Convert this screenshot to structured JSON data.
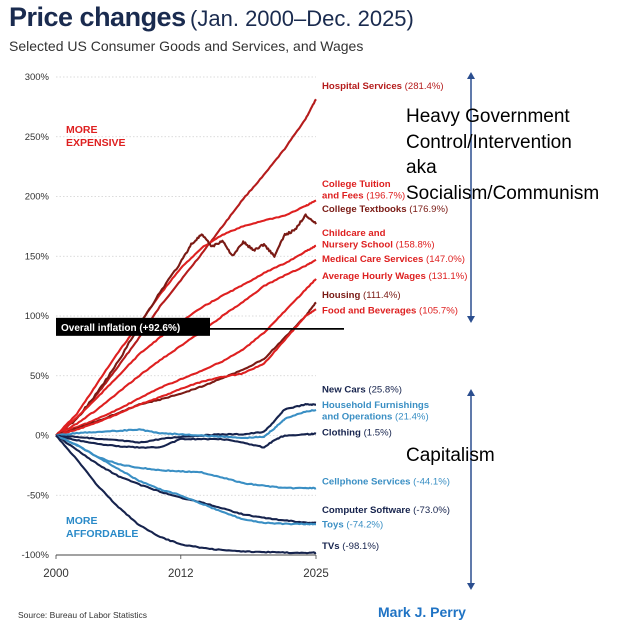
{
  "header": {
    "title": "Price changes",
    "title_suffix": "(Jan. 2000–Dec. 2025)",
    "subtitle": "Selected US Consumer Goods and Services, and Wages"
  },
  "footer": {
    "source": "Source:  Bureau of Labor Statistics",
    "author": "Mark J. Perry"
  },
  "annotations": {
    "gov_lines": [
      "Heavy Government",
      "Control/Intervention",
      "aka",
      "Socialism/Communism"
    ],
    "capitalism": "Capitalism"
  },
  "chart_data": {
    "type": "line",
    "title": "Price changes (Jan. 2000–Dec. 2025)",
    "xlim": [
      2000,
      2025
    ],
    "ylim": [
      -100,
      300
    ],
    "x_ticks": [
      2000,
      2012,
      2025
    ],
    "y_ticks": [
      -100,
      -50,
      0,
      50,
      100,
      150,
      200,
      250,
      300
    ],
    "y_tick_labels": [
      "-100%",
      "-50%",
      "0%",
      "50%",
      "100%",
      "150%",
      "200%",
      "250%",
      "300%"
    ],
    "region_labels": {
      "more_expensive": [
        "MORE",
        "EXPENSIVE"
      ],
      "more_affordable": [
        "MORE",
        "AFFORDABLE"
      ]
    },
    "overall_inflation": {
      "value": 92.6,
      "label": "Overall inflation (+92.6%)"
    },
    "series": [
      {
        "name": "Hospital Services",
        "label_lines": [
          "Hospital Services"
        ],
        "value_label": "(281.4%)",
        "color": "#b51c1c",
        "label_y_value": 290,
        "points": [
          [
            2000,
            0
          ],
          [
            2002,
            14
          ],
          [
            2004,
            35
          ],
          [
            2006,
            58
          ],
          [
            2008,
            82
          ],
          [
            2010,
            108
          ],
          [
            2012,
            130
          ],
          [
            2014,
            152
          ],
          [
            2016,
            175
          ],
          [
            2018,
            198
          ],
          [
            2020,
            218
          ],
          [
            2022,
            240
          ],
          [
            2024,
            265
          ],
          [
            2025,
            281.4
          ]
        ]
      },
      {
        "name": "College Tuition and Fees",
        "label_lines": [
          "College Tuition",
          "and Fees"
        ],
        "value_label": "(196.7%)",
        "color": "#de2020",
        "label_y_value": 208,
        "points": [
          [
            2000,
            0
          ],
          [
            2002,
            18
          ],
          [
            2004,
            44
          ],
          [
            2006,
            70
          ],
          [
            2008,
            93
          ],
          [
            2010,
            118
          ],
          [
            2012,
            140
          ],
          [
            2014,
            157
          ],
          [
            2016,
            168
          ],
          [
            2018,
            175
          ],
          [
            2020,
            180
          ],
          [
            2022,
            184
          ],
          [
            2024,
            192
          ],
          [
            2025,
            196.7
          ]
        ]
      },
      {
        "name": "College Textbooks",
        "label_lines": [
          "College Textbooks"
        ],
        "value_label": "(176.9%)",
        "color": "#7a1a14",
        "label_y_value": 187,
        "points": [
          [
            2000,
            0
          ],
          [
            2002,
            14
          ],
          [
            2004,
            36
          ],
          [
            2006,
            62
          ],
          [
            2008,
            92
          ],
          [
            2010,
            120
          ],
          [
            2012,
            145
          ],
          [
            2013,
            160
          ],
          [
            2014,
            168
          ],
          [
            2015,
            158
          ],
          [
            2016,
            163
          ],
          [
            2017,
            150
          ],
          [
            2018,
            162
          ],
          [
            2019,
            155
          ],
          [
            2020,
            160
          ],
          [
            2021,
            150
          ],
          [
            2022,
            168
          ],
          [
            2023,
            172
          ],
          [
            2024,
            185
          ],
          [
            2025,
            176.9
          ]
        ]
      },
      {
        "name": "Childcare and Nursery School",
        "label_lines": [
          "Childcare and",
          "Nursery School"
        ],
        "value_label": "(158.8%)",
        "color": "#de2020",
        "label_y_value": 167,
        "points": [
          [
            2000,
            0
          ],
          [
            2002,
            15
          ],
          [
            2004,
            32
          ],
          [
            2006,
            50
          ],
          [
            2008,
            68
          ],
          [
            2010,
            82
          ],
          [
            2012,
            95
          ],
          [
            2014,
            107
          ],
          [
            2016,
            117
          ],
          [
            2018,
            126
          ],
          [
            2020,
            136
          ],
          [
            2022,
            144
          ],
          [
            2024,
            154
          ],
          [
            2025,
            158.8
          ]
        ]
      },
      {
        "name": "Medical Care Services",
        "label_lines": [
          "Medical Care Services"
        ],
        "value_label": "(147.0%)",
        "color": "#de2020",
        "label_y_value": 145,
        "points": [
          [
            2000,
            0
          ],
          [
            2002,
            10
          ],
          [
            2004,
            22
          ],
          [
            2006,
            36
          ],
          [
            2008,
            50
          ],
          [
            2010,
            63
          ],
          [
            2012,
            75
          ],
          [
            2014,
            87
          ],
          [
            2016,
            100
          ],
          [
            2018,
            112
          ],
          [
            2020,
            125
          ],
          [
            2022,
            134
          ],
          [
            2024,
            142
          ],
          [
            2025,
            147
          ]
        ]
      },
      {
        "name": "Average Hourly Wages",
        "label_lines": [
          "Average Hourly Wages"
        ],
        "value_label": "(131.1%)",
        "color": "#de2020",
        "label_y_value": 131,
        "points": [
          [
            2000,
            0
          ],
          [
            2002,
            7
          ],
          [
            2004,
            14
          ],
          [
            2006,
            22
          ],
          [
            2008,
            31
          ],
          [
            2010,
            40
          ],
          [
            2012,
            47
          ],
          [
            2014,
            54
          ],
          [
            2016,
            62
          ],
          [
            2018,
            72
          ],
          [
            2020,
            86
          ],
          [
            2022,
            104
          ],
          [
            2024,
            122
          ],
          [
            2025,
            131.1
          ]
        ]
      },
      {
        "name": "Housing",
        "label_lines": [
          "Housing"
        ],
        "value_label": "(111.4%)",
        "color": "#7a1a14",
        "label_y_value": 115,
        "points": [
          [
            2000,
            0
          ],
          [
            2002,
            6
          ],
          [
            2004,
            12
          ],
          [
            2006,
            19
          ],
          [
            2008,
            26
          ],
          [
            2010,
            30
          ],
          [
            2012,
            35
          ],
          [
            2014,
            41
          ],
          [
            2016,
            48
          ],
          [
            2018,
            55
          ],
          [
            2020,
            64
          ],
          [
            2022,
            82
          ],
          [
            2024,
            100
          ],
          [
            2025,
            111.4
          ]
        ]
      },
      {
        "name": "Food and Beverages",
        "label_lines": [
          "Food and Beverages"
        ],
        "value_label": "(105.7%)",
        "color": "#de2020",
        "label_y_value": 102,
        "points": [
          [
            2000,
            0
          ],
          [
            2002,
            5
          ],
          [
            2004,
            11
          ],
          [
            2006,
            18
          ],
          [
            2008,
            26
          ],
          [
            2010,
            32
          ],
          [
            2012,
            39
          ],
          [
            2014,
            45
          ],
          [
            2016,
            49
          ],
          [
            2018,
            52
          ],
          [
            2020,
            60
          ],
          [
            2022,
            80
          ],
          [
            2024,
            100
          ],
          [
            2025,
            105.7
          ]
        ]
      },
      {
        "name": "New Cars",
        "label_lines": [
          "New Cars"
        ],
        "value_label": "(25.8%)",
        "color": "#16234d",
        "label_y_value": 36,
        "points": [
          [
            2000,
            0
          ],
          [
            2002,
            -1
          ],
          [
            2004,
            -3
          ],
          [
            2006,
            -4
          ],
          [
            2008,
            -6
          ],
          [
            2010,
            -3
          ],
          [
            2012,
            -1
          ],
          [
            2014,
            0
          ],
          [
            2016,
            1
          ],
          [
            2018,
            1
          ],
          [
            2020,
            3
          ],
          [
            2021,
            12
          ],
          [
            2022,
            22
          ],
          [
            2024,
            26
          ],
          [
            2025,
            25.8
          ]
        ]
      },
      {
        "name": "Household Furnishings and Operations",
        "label_lines": [
          "Household Furnishings",
          "and Operations"
        ],
        "value_label": "(21.4%)",
        "color": "#3a8fc4",
        "label_y_value": 23,
        "points": [
          [
            2000,
            0
          ],
          [
            2002,
            2
          ],
          [
            2004,
            3
          ],
          [
            2006,
            4
          ],
          [
            2008,
            5
          ],
          [
            2010,
            2
          ],
          [
            2012,
            1
          ],
          [
            2014,
            0
          ],
          [
            2016,
            -1
          ],
          [
            2018,
            -2
          ],
          [
            2020,
            -1
          ],
          [
            2021,
            6
          ],
          [
            2022,
            14
          ],
          [
            2024,
            20
          ],
          [
            2025,
            21.4
          ]
        ]
      },
      {
        "name": "Clothing",
        "label_lines": [
          "Clothing"
        ],
        "value_label": "(1.5%)",
        "color": "#16234d",
        "label_y_value": 0,
        "points": [
          [
            2000,
            0
          ],
          [
            2002,
            -4
          ],
          [
            2004,
            -7
          ],
          [
            2006,
            -9
          ],
          [
            2008,
            -10
          ],
          [
            2010,
            -10
          ],
          [
            2012,
            -3
          ],
          [
            2014,
            -3
          ],
          [
            2016,
            -3
          ],
          [
            2018,
            -6
          ],
          [
            2020,
            -10
          ],
          [
            2021,
            -4
          ],
          [
            2022,
            0
          ],
          [
            2024,
            1
          ],
          [
            2025,
            1.5
          ]
        ]
      },
      {
        "name": "Cellphone Services",
        "label_lines": [
          "Cellphone Services"
        ],
        "value_label": "(-44.1%)",
        "color": "#3a8fc4",
        "label_y_value": -41,
        "points": [
          [
            2000,
            0
          ],
          [
            2002,
            -8
          ],
          [
            2004,
            -18
          ],
          [
            2006,
            -24
          ],
          [
            2008,
            -27
          ],
          [
            2010,
            -29
          ],
          [
            2012,
            -30
          ],
          [
            2014,
            -31
          ],
          [
            2016,
            -35
          ],
          [
            2018,
            -40
          ],
          [
            2020,
            -42
          ],
          [
            2022,
            -44
          ],
          [
            2024,
            -44
          ],
          [
            2025,
            -44.1
          ]
        ]
      },
      {
        "name": "Computer Software",
        "label_lines": [
          "Computer Software"
        ],
        "value_label": "(-73.0%)",
        "color": "#16234d",
        "label_y_value": -65,
        "points": [
          [
            2000,
            0
          ],
          [
            2002,
            -12
          ],
          [
            2004,
            -24
          ],
          [
            2006,
            -34
          ],
          [
            2008,
            -41
          ],
          [
            2010,
            -47
          ],
          [
            2012,
            -52
          ],
          [
            2014,
            -56
          ],
          [
            2016,
            -61
          ],
          [
            2018,
            -66
          ],
          [
            2020,
            -69
          ],
          [
            2022,
            -71
          ],
          [
            2024,
            -73
          ],
          [
            2025,
            -73
          ]
        ]
      },
      {
        "name": "Toys",
        "label_lines": [
          "Toys"
        ],
        "value_label": "(-74.2%)",
        "color": "#3a8fc4",
        "label_y_value": -77,
        "points": [
          [
            2000,
            0
          ],
          [
            2002,
            -8
          ],
          [
            2004,
            -18
          ],
          [
            2006,
            -28
          ],
          [
            2008,
            -38
          ],
          [
            2010,
            -45
          ],
          [
            2012,
            -50
          ],
          [
            2014,
            -57
          ],
          [
            2016,
            -64
          ],
          [
            2018,
            -70
          ],
          [
            2020,
            -73
          ],
          [
            2022,
            -74
          ],
          [
            2024,
            -74
          ],
          [
            2025,
            -74.2
          ]
        ]
      },
      {
        "name": "TVs",
        "label_lines": [
          "TVs"
        ],
        "value_label": "(-98.1%)",
        "color": "#16234d",
        "label_y_value": -95,
        "points": [
          [
            2000,
            0
          ],
          [
            2002,
            -20
          ],
          [
            2004,
            -42
          ],
          [
            2006,
            -60
          ],
          [
            2008,
            -75
          ],
          [
            2010,
            -85
          ],
          [
            2012,
            -91
          ],
          [
            2014,
            -94
          ],
          [
            2016,
            -96
          ],
          [
            2018,
            -97
          ],
          [
            2020,
            -97.5
          ],
          [
            2022,
            -98
          ],
          [
            2024,
            -98.1
          ],
          [
            2025,
            -98.1
          ]
        ]
      }
    ]
  }
}
